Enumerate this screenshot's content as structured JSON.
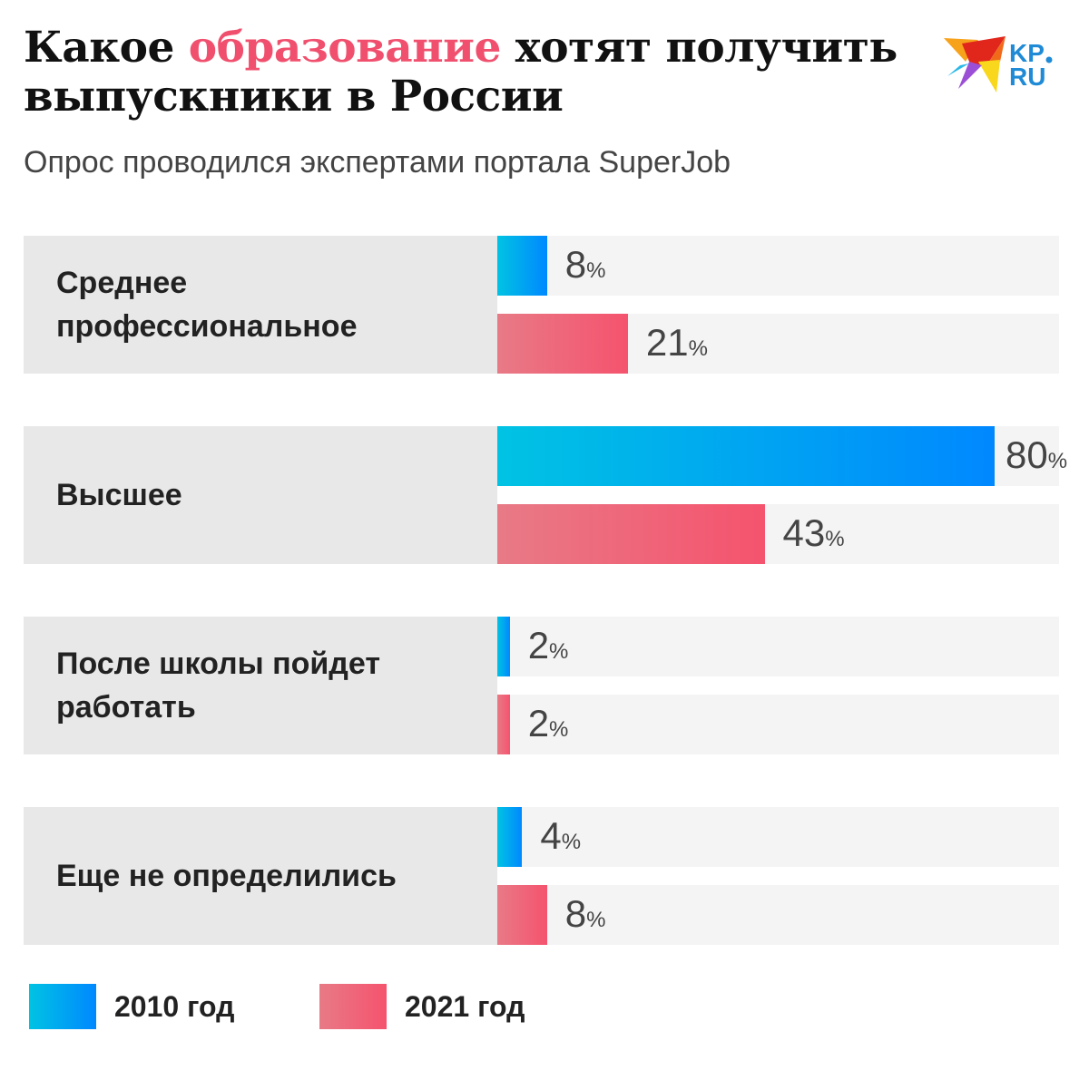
{
  "title": {
    "part1": "Какое ",
    "highlight": "образование",
    "part2": " хотят получить",
    "line2": "выпускники в России"
  },
  "subtitle": "Опрос проводился экспертами портала SuperJob",
  "logo": {
    "text": "KP.RU"
  },
  "colors": {
    "y2010_start": "#00c3e3",
    "y2010_end": "#0088ff",
    "y2021_start": "#e87a86",
    "y2021_end": "#f5536e",
    "highlight": "#f0506e"
  },
  "chart_data": {
    "type": "bar",
    "orientation": "horizontal",
    "categories": [
      "Среднее профессиональное",
      "Высшее",
      "После школы пойдет работать",
      "Еще не определились"
    ],
    "series": [
      {
        "name": "2010 год",
        "values": [
          8,
          80,
          2,
          4
        ]
      },
      {
        "name": "2021 год",
        "values": [
          21,
          43,
          2,
          8
        ]
      }
    ],
    "unit": "%",
    "xlim": [
      0,
      90
    ],
    "legend": "bottom-left",
    "grid": false
  }
}
